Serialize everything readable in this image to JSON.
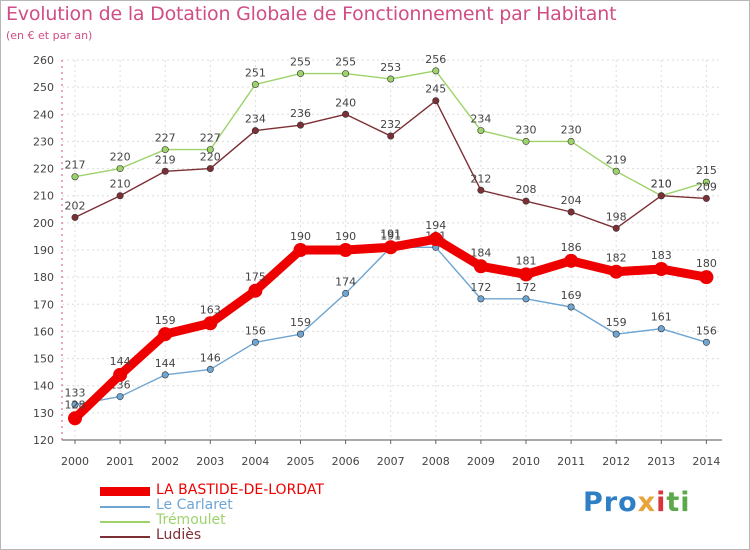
{
  "title": "Evolution de la Dotation Globale de Fonctionnement par Habitant",
  "subtitle": "(en € et par an)",
  "brand": {
    "parts": [
      "Pro",
      "x",
      "i",
      "ti"
    ],
    "colors": [
      "#2f7fc4",
      "#e8a33a",
      "#d9343a",
      "#5ca84a"
    ]
  },
  "chart_data": {
    "type": "line",
    "title": "Evolution de la Dotation Globale de Fonctionnement par Habitant",
    "ylabel": "(en € et par an)",
    "xlabel": "",
    "x": [
      "2000",
      "2001",
      "2002",
      "2003",
      "2004",
      "2005",
      "2006",
      "2007",
      "2008",
      "2009",
      "2010",
      "2011",
      "2012",
      "2013",
      "2014"
    ],
    "ylim": [
      120,
      260
    ],
    "yticks": [
      120,
      130,
      140,
      150,
      160,
      170,
      180,
      190,
      200,
      210,
      220,
      230,
      240,
      250,
      260
    ],
    "grid": true,
    "legend_position": "bottom-left",
    "series": [
      {
        "name": "Le Carlaret",
        "color": "#6fa5d2",
        "values": [
          133,
          136,
          144,
          146,
          156,
          159,
          174,
          191,
          191,
          172,
          172,
          169,
          159,
          161,
          156
        ]
      },
      {
        "name": "Trémoulet",
        "color": "#9dd36a",
        "values": [
          217,
          220,
          227,
          227,
          251,
          255,
          255,
          253,
          256,
          234,
          230,
          230,
          219,
          210,
          215
        ]
      },
      {
        "name": "Ludiès",
        "color": "#7d2f36",
        "values": [
          202,
          210,
          219,
          220,
          234,
          236,
          240,
          232,
          245,
          212,
          208,
          204,
          198,
          210,
          209
        ]
      },
      {
        "name": "LA BASTIDE-DE-LORDAT",
        "color": "#ee0000",
        "values": [
          128,
          144,
          159,
          163,
          175,
          190,
          190,
          191,
          194,
          184,
          181,
          186,
          182,
          183,
          180
        ]
      }
    ]
  }
}
